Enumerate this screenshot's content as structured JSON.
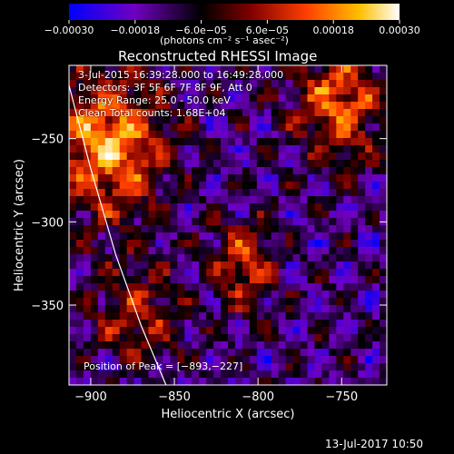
{
  "chart_data": {
    "type": "heatmap",
    "title": "Reconstructed RHESSI Image",
    "xlabel": "Heliocentric X (arcsec)",
    "ylabel": "Heliocentric Y (arcsec)",
    "xlim": [
      -913,
      -723
    ],
    "ylim": [
      -398,
      -206
    ],
    "x_ticks": [
      -900,
      -850,
      -800,
      -750
    ],
    "x_tick_labels": [
      "−900",
      "−850",
      "−800",
      "−750"
    ],
    "y_ticks": [
      -350,
      -300,
      -250
    ],
    "y_tick_labels": [
      "−350",
      "−300",
      "−250"
    ],
    "colorbar": {
      "range": [
        -0.0003,
        0.0003
      ],
      "ticks": [
        -0.0003,
        -0.00018,
        -6e-05,
        6e-05,
        0.00018,
        0.0003
      ],
      "tick_labels": [
        "−0.00030",
        "−0.00018",
        "−6.0e−05",
        "6.0e−05",
        "0.00018",
        "0.00030"
      ],
      "units": "(photons cm⁻² s⁻¹ asec⁻²)",
      "colormap": [
        "#0000ff",
        "#7000c0",
        "#000000",
        "#800000",
        "#ff4000",
        "#ffc000",
        "#ffffff"
      ]
    },
    "annotations": [
      "3-Jul-2015 16:39:28.000 to 16:49:28.000",
      "Detectors: 3F 5F 6F 7F 8F 9F, Att 0",
      "Energy Range: 25.0 - 50.0 keV",
      "Clean     Total counts: 1.68E+04"
    ],
    "peak_label": "Position of Peak = [−893,−227]",
    "limb_curve": {
      "x": [
        -913,
        -900,
        -885,
        -870,
        -855
      ],
      "y": [
        -218,
        -268,
        -320,
        -362,
        -398
      ]
    }
  },
  "footer": {
    "timestamp": "13-Jul-2017 10:50"
  }
}
